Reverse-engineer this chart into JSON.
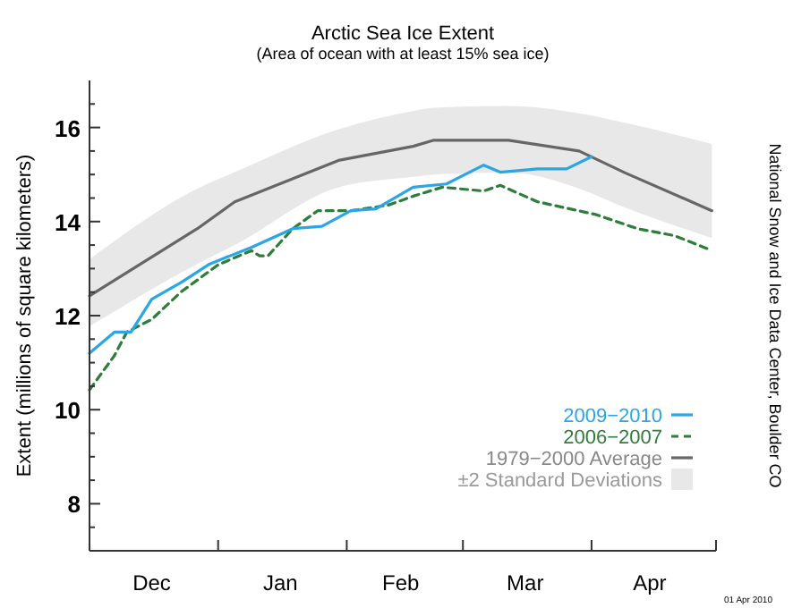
{
  "chart_data": {
    "type": "line",
    "title": "Arctic Sea Ice Extent",
    "subtitle": "(Area of ocean with at least 15% sea ice)",
    "ylabel": "Extent (millions of square kilometers)",
    "xlim": [
      "2009-12-01",
      "2010-05-01"
    ],
    "xticks": [
      {
        "value": "2009-12-01",
        "label": null
      },
      {
        "value": "2009-12-16",
        "label": "Dec"
      },
      {
        "value": "2010-01-01",
        "label": null
      },
      {
        "value": "2010-01-16",
        "label": "Jan"
      },
      {
        "value": "2010-02-01",
        "label": null
      },
      {
        "value": "2010-02-14",
        "label": "Feb"
      },
      {
        "value": "2010-03-01",
        "label": null
      },
      {
        "value": "2010-03-16",
        "label": "Mar"
      },
      {
        "value": "2010-04-01",
        "label": null
      },
      {
        "value": "2010-04-15",
        "label": "Apr"
      },
      {
        "value": "2010-05-01",
        "label": null
      }
    ],
    "ylim": [
      7,
      17
    ],
    "yticks": [
      {
        "value": 7.5,
        "label": null
      },
      {
        "value": 8,
        "label": "8"
      },
      {
        "value": 8.5,
        "label": null
      },
      {
        "value": 9,
        "label": null
      },
      {
        "value": 9.5,
        "label": null
      },
      {
        "value": 10,
        "label": "10"
      },
      {
        "value": 10.5,
        "label": null
      },
      {
        "value": 11,
        "label": null
      },
      {
        "value": 11.5,
        "label": null
      },
      {
        "value": 12,
        "label": "12"
      },
      {
        "value": 12.5,
        "label": null
      },
      {
        "value": 13,
        "label": null
      },
      {
        "value": 13.5,
        "label": null
      },
      {
        "value": 14,
        "label": "14"
      },
      {
        "value": 14.5,
        "label": null
      },
      {
        "value": 15,
        "label": null
      },
      {
        "value": 15.5,
        "label": null
      },
      {
        "value": 16,
        "label": "16"
      },
      {
        "value": 16.5,
        "label": null
      }
    ],
    "legend": "bottom right",
    "grid": false,
    "series": [
      {
        "name": "1979−2000 Average",
        "color": "#666666",
        "line_style": "solid",
        "x": [
          "2009-12-01",
          "2009-12-27",
          "2010-01-05",
          "2010-01-30",
          "2010-02-17",
          "2010-02-22",
          "2010-03-12",
          "2010-03-29",
          "2010-04-09",
          "2010-04-30"
        ],
        "values": [
          12.42,
          13.85,
          14.42,
          15.3,
          15.6,
          15.73,
          15.73,
          15.5,
          15.04,
          14.23
        ],
        "upper": [
          13.2,
          14.7,
          15.05,
          15.96,
          16.35,
          16.42,
          16.46,
          16.3,
          16.1,
          15.65
        ],
        "lower": [
          11.77,
          13.1,
          13.5,
          14.73,
          14.95,
          15.0,
          15.04,
          14.7,
          14.3,
          13.65
        ]
      },
      {
        "name": "2006−2007",
        "color": "#2e7d3a",
        "line_style": "dashed",
        "x": [
          "2009-12-01",
          "2009-12-07",
          "2009-12-10",
          "2009-12-16",
          "2009-12-23",
          "2010-01-01",
          "2010-01-06",
          "2010-01-09",
          "2010-01-11",
          "2010-01-13",
          "2010-01-19",
          "2010-01-25",
          "2010-02-02",
          "2010-02-11",
          "2010-02-17",
          "2010-02-24",
          "2010-03-06",
          "2010-03-10",
          "2010-03-19",
          "2010-04-02",
          "2010-04-12",
          "2010-04-21",
          "2010-04-29"
        ],
        "values": [
          10.42,
          11.15,
          11.65,
          11.92,
          12.5,
          13.08,
          13.27,
          13.38,
          13.27,
          13.27,
          13.85,
          14.23,
          14.23,
          14.35,
          14.54,
          14.73,
          14.65,
          14.77,
          14.42,
          14.15,
          13.85,
          13.7,
          13.42
        ]
      },
      {
        "name": "2009−2010",
        "color": "#2aa6e6",
        "line_style": "solid",
        "x": [
          "2009-12-01",
          "2009-12-07",
          "2009-12-11",
          "2009-12-16",
          "2009-12-23",
          "2009-12-30",
          "2010-01-09",
          "2010-01-19",
          "2010-01-26",
          "2010-02-02",
          "2010-02-08",
          "2010-02-17",
          "2010-02-25",
          "2010-03-06",
          "2010-03-10",
          "2010-03-19",
          "2010-03-26",
          "2010-04-01"
        ],
        "values": [
          11.2,
          11.65,
          11.65,
          12.35,
          12.7,
          13.1,
          13.45,
          13.85,
          13.9,
          14.23,
          14.27,
          14.73,
          14.8,
          15.2,
          15.05,
          15.12,
          15.12,
          15.38
        ]
      }
    ],
    "annotations": [
      "National Snow and Ice Data Center, Boulder CO",
      "01 Apr 2010",
      "±2 Standard Deviations"
    ]
  }
}
